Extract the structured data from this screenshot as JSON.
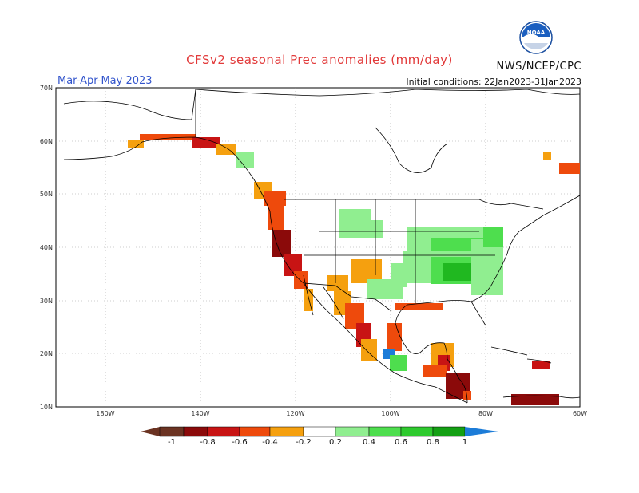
{
  "header": {
    "title": "CFSv2 seasonal Prec anomalies (mm/day)",
    "season": "Mar-Apr-May 2023",
    "credit": "NWS/NCEP/CPC",
    "initial_conditions": "Initial conditions: 22Jan2023-31Jan2023",
    "logo_text": "NOAA"
  },
  "map": {
    "lat_labels": [
      "70N",
      "60N",
      "50N",
      "40N",
      "30N",
      "20N",
      "10N"
    ],
    "lon_labels": [
      "180W",
      "140W",
      "120W",
      "100W",
      "80W",
      "60W"
    ],
    "colors": {
      "dry_strong": "#8b0a0a",
      "dry_mid": "#c81414",
      "dry_weak": "#ee4a0c",
      "dry_light": "#f5a00f",
      "wet_light": "#90ee90",
      "wet_mid": "#4ede4e",
      "wet_strong": "#20b820",
      "wet_extreme": "#1c7cd8"
    }
  },
  "colorbar": {
    "labels": [
      "-1",
      "-0.8",
      "-0.6",
      "-0.4",
      "-0.2",
      "0.2",
      "0.4",
      "0.6",
      "0.8",
      "1"
    ],
    "colors": [
      "#6b3322",
      "#8b0a0a",
      "#c81414",
      "#ee4a0c",
      "#f5a00f",
      "#ffffff",
      "#90ee90",
      "#4ede4e",
      "#2eca2e",
      "#14a014",
      "#1c7cd8"
    ]
  }
}
